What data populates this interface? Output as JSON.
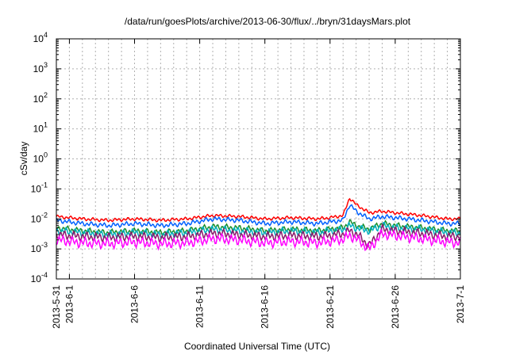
{
  "chart_data": {
    "type": "line",
    "title": "/data/run/goesPlots/archive/2013-06-30/flux/../bryn/31daysMars.plot",
    "xlabel": "Coordinated Universal Time (UTC)",
    "ylabel": "cSv/day",
    "yscale": "log",
    "ylim": [
      0.0001,
      10000
    ],
    "xlim": [
      "2013-05-31",
      "2013-07-01"
    ],
    "grid": true,
    "x_ticks": [
      "2013-5-31",
      "2013-6-1",
      "2013-6-6",
      "2013-6-11",
      "2013-6-16",
      "2013-6-21",
      "2013-6-26",
      "2013-7-1"
    ],
    "x_tick_dates": [
      "2013-05-31",
      "2013-06-01",
      "2013-06-06",
      "2013-06-11",
      "2013-06-16",
      "2013-06-21",
      "2013-06-26",
      "2013-07-01"
    ],
    "y_ticks": [
      {
        "base": "10",
        "exp": "4",
        "value": 10000
      },
      {
        "base": "10",
        "exp": "3",
        "value": 1000
      },
      {
        "base": "10",
        "exp": "2",
        "value": 100
      },
      {
        "base": "10",
        "exp": "1",
        "value": 10
      },
      {
        "base": "10",
        "exp": "0",
        "value": 1
      },
      {
        "base": "10",
        "exp": "-1",
        "value": 0.1
      },
      {
        "base": "10",
        "exp": "-2",
        "value": 0.01
      },
      {
        "base": "10",
        "exp": "-3",
        "value": 0.001
      },
      {
        "base": "10",
        "exp": "-4",
        "value": 0.0001
      }
    ],
    "series": [
      {
        "color": "#ff0000",
        "x": [
          "2013-05-31",
          "2013-06-02",
          "2013-06-04",
          "2013-06-06",
          "2013-06-08",
          "2013-06-10",
          "2013-06-12",
          "2013-06-14",
          "2013-06-16",
          "2013-06-18",
          "2013-06-20",
          "2013-06-21",
          "2013-06-22",
          "2013-06-22T12",
          "2013-06-23",
          "2013-06-24",
          "2013-06-25",
          "2013-06-26",
          "2013-06-28",
          "2013-06-30",
          "2013-07-01"
        ],
        "values": [
          0.012,
          0.01,
          0.009,
          0.01,
          0.009,
          0.01,
          0.013,
          0.012,
          0.01,
          0.011,
          0.01,
          0.011,
          0.013,
          0.05,
          0.03,
          0.016,
          0.018,
          0.016,
          0.013,
          0.01,
          0.01
        ]
      },
      {
        "color": "#0060ff",
        "x": [
          "2013-05-31",
          "2013-06-02",
          "2013-06-04",
          "2013-06-06",
          "2013-06-08",
          "2013-06-10",
          "2013-06-12",
          "2013-06-14",
          "2013-06-16",
          "2013-06-18",
          "2013-06-20",
          "2013-06-21",
          "2013-06-22",
          "2013-06-22T12",
          "2013-06-23",
          "2013-06-24",
          "2013-06-25",
          "2013-06-26",
          "2013-06-28",
          "2013-06-30",
          "2013-07-01"
        ],
        "values": [
          0.009,
          0.007,
          0.006,
          0.007,
          0.006,
          0.007,
          0.01,
          0.009,
          0.007,
          0.008,
          0.007,
          0.008,
          0.009,
          0.03,
          0.018,
          0.01,
          0.012,
          0.011,
          0.009,
          0.007,
          0.007
        ]
      },
      {
        "color": "#1a8f2a",
        "x": [
          "2013-05-31",
          "2013-06-02",
          "2013-06-04",
          "2013-06-06",
          "2013-06-08",
          "2013-06-10",
          "2013-06-12",
          "2013-06-14",
          "2013-06-16",
          "2013-06-18",
          "2013-06-20",
          "2013-06-21",
          "2013-06-22",
          "2013-06-22T12",
          "2013-06-23",
          "2013-06-24",
          "2013-06-25",
          "2013-06-26",
          "2013-06-28",
          "2013-06-30",
          "2013-07-01"
        ],
        "values": [
          0.005,
          0.004,
          0.0035,
          0.004,
          0.0035,
          0.004,
          0.0055,
          0.005,
          0.004,
          0.0045,
          0.004,
          0.0045,
          0.005,
          0.008,
          0.006,
          0.0045,
          0.007,
          0.006,
          0.005,
          0.004,
          0.004
        ]
      },
      {
        "color": "#00b0c0",
        "x": [
          "2013-05-31",
          "2013-06-02",
          "2013-06-04",
          "2013-06-06",
          "2013-06-08",
          "2013-06-10",
          "2013-06-12",
          "2013-06-14",
          "2013-06-16",
          "2013-06-18",
          "2013-06-20",
          "2013-06-21",
          "2013-06-22",
          "2013-06-22T12",
          "2013-06-23",
          "2013-06-24",
          "2013-06-25",
          "2013-06-26",
          "2013-06-28",
          "2013-06-30",
          "2013-07-01"
        ],
        "values": [
          0.004,
          0.0035,
          0.003,
          0.0035,
          0.003,
          0.0035,
          0.0045,
          0.004,
          0.0035,
          0.004,
          0.0035,
          0.004,
          0.0045,
          0.006,
          0.005,
          0.004,
          0.006,
          0.005,
          0.0045,
          0.0035,
          0.0035
        ]
      },
      {
        "color": "#8a1a6a",
        "x": [
          "2013-05-31",
          "2013-06-02",
          "2013-06-04",
          "2013-06-06",
          "2013-06-08",
          "2013-06-10",
          "2013-06-12",
          "2013-06-14",
          "2013-06-16",
          "2013-06-18",
          "2013-06-20",
          "2013-06-21",
          "2013-06-22",
          "2013-06-22T12",
          "2013-06-23",
          "2013-06-24",
          "2013-06-25",
          "2013-06-26",
          "2013-06-28",
          "2013-06-30",
          "2013-07-01"
        ],
        "values": [
          0.003,
          0.0026,
          0.0024,
          0.0026,
          0.0024,
          0.0026,
          0.0033,
          0.003,
          0.0026,
          0.0028,
          0.0026,
          0.0028,
          0.0032,
          0.004,
          0.0032,
          0.0013,
          0.0045,
          0.004,
          0.0033,
          0.0026,
          0.0026
        ]
      },
      {
        "color": "#ff00ff",
        "x": [
          "2013-05-31",
          "2013-06-02",
          "2013-06-04",
          "2013-06-06",
          "2013-06-08",
          "2013-06-10",
          "2013-06-12",
          "2013-06-14",
          "2013-06-16",
          "2013-06-18",
          "2013-06-20",
          "2013-06-21",
          "2013-06-22",
          "2013-06-22T12",
          "2013-06-23",
          "2013-06-24",
          "2013-06-25",
          "2013-06-26",
          "2013-06-28",
          "2013-06-30",
          "2013-07-01"
        ],
        "values": [
          0.002,
          0.0016,
          0.0015,
          0.0017,
          0.0015,
          0.0016,
          0.0022,
          0.002,
          0.0016,
          0.0018,
          0.0016,
          0.0018,
          0.0021,
          0.0028,
          0.0022,
          0.001,
          0.0032,
          0.0028,
          0.0022,
          0.0017,
          0.0016
        ]
      }
    ]
  }
}
